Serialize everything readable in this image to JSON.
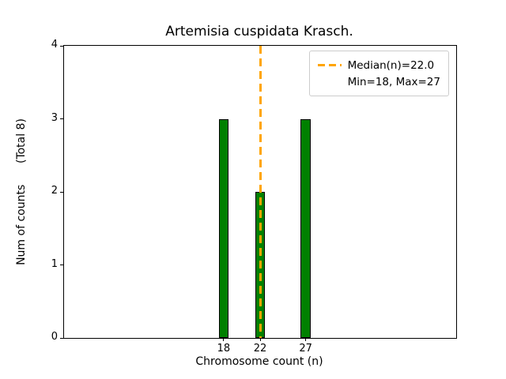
{
  "figure": {
    "title": "Artemisia cuspidata Krasch."
  },
  "chart_data": {
    "type": "bar",
    "title": "Artemisia cuspidata Krasch.",
    "xlabel": "Chromosome count (n)",
    "ylabel": "Num of counts      (Total 8)",
    "categories": [
      18,
      22,
      27
    ],
    "values": [
      3,
      2,
      3
    ],
    "total_counts": 8,
    "median": 22.0,
    "min": 18,
    "max": 27,
    "xticks": [
      18,
      22,
      27
    ],
    "yticks": [
      0,
      1,
      2,
      3,
      4
    ],
    "xlim": [
      0.5,
      43.5
    ],
    "ylim": [
      0,
      4
    ],
    "bar_width": 1.1,
    "bar_color": "#008000",
    "bar_edge_color": "#000000",
    "median_line_color": "#ffa500",
    "grid": false,
    "legend_position": "upper right",
    "legend": [
      "Median(n)=22.0",
      "Min=18, Max=27"
    ]
  }
}
